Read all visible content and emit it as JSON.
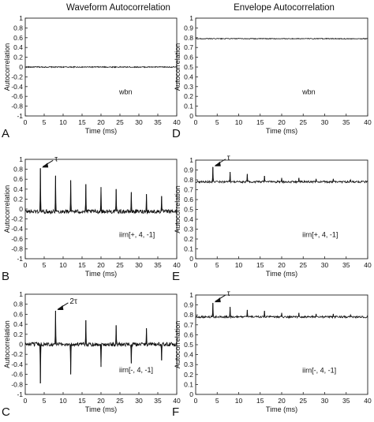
{
  "column_titles": [
    "Waveform Autocorrelation",
    "Envelope Autocorrelation"
  ],
  "chart_data": [
    {
      "type": "line",
      "panel": "A",
      "column": "Waveform Autocorrelation",
      "xlabel": "Time (ms)",
      "ylabel": "Autocorrelation",
      "xlim": [
        0,
        40
      ],
      "ylim": [
        -1,
        1
      ],
      "xticks": [
        0,
        5,
        10,
        15,
        20,
        25,
        30,
        35,
        40
      ],
      "yticks": [
        -1,
        -0.8,
        -0.6,
        -0.4,
        -0.2,
        0,
        0.2,
        0.4,
        0.6,
        0.8,
        1
      ],
      "grid": false,
      "annotation": "wbn",
      "baseline": 0,
      "noise_amplitude": 0.01,
      "peaks": [],
      "dips": [],
      "arrow": null
    },
    {
      "type": "line",
      "panel": "B",
      "column": "Waveform Autocorrelation",
      "xlabel": "Time (ms)",
      "ylabel": "Autocorrelation",
      "xlim": [
        0,
        40
      ],
      "ylim": [
        -1,
        1
      ],
      "xticks": [
        0,
        5,
        10,
        15,
        20,
        25,
        30,
        35,
        40
      ],
      "yticks": [
        -1,
        -0.8,
        -0.6,
        -0.4,
        -0.2,
        0,
        0.2,
        0.4,
        0.6,
        0.8,
        1
      ],
      "grid": false,
      "annotation": "iirn[+, 4, -1]",
      "baseline": -0.05,
      "noise_amplitude": 0.04,
      "peaks": [
        {
          "x": 4,
          "y": 0.82
        },
        {
          "x": 8,
          "y": 0.67
        },
        {
          "x": 12,
          "y": 0.58
        },
        {
          "x": 16,
          "y": 0.5
        },
        {
          "x": 20,
          "y": 0.44
        },
        {
          "x": 24,
          "y": 0.4
        },
        {
          "x": 28,
          "y": 0.34
        },
        {
          "x": 32,
          "y": 0.3
        },
        {
          "x": 36,
          "y": 0.26
        }
      ],
      "dips": [],
      "arrow": {
        "label": "τ",
        "x": 4,
        "y": 0.82
      }
    },
    {
      "type": "line",
      "panel": "C",
      "column": "Waveform Autocorrelation",
      "xlabel": "Time (ms)",
      "ylabel": "Autocorrelation",
      "xlim": [
        0,
        40
      ],
      "ylim": [
        -1,
        1
      ],
      "xticks": [
        0,
        5,
        10,
        15,
        20,
        25,
        30,
        35,
        40
      ],
      "yticks": [
        -1,
        -0.8,
        -0.6,
        -0.4,
        -0.2,
        0,
        0.2,
        0.4,
        0.6,
        0.8,
        1
      ],
      "grid": false,
      "annotation": "iirn[-, 4, -1]",
      "baseline": 0,
      "noise_amplitude": 0.04,
      "peaks": [
        {
          "x": 8,
          "y": 0.67
        },
        {
          "x": 16,
          "y": 0.48
        },
        {
          "x": 24,
          "y": 0.38
        },
        {
          "x": 32,
          "y": 0.32
        }
      ],
      "dips": [
        {
          "x": 4,
          "y": -0.78
        },
        {
          "x": 12,
          "y": -0.6
        },
        {
          "x": 20,
          "y": -0.45
        },
        {
          "x": 28,
          "y": -0.38
        },
        {
          "x": 36,
          "y": -0.32
        }
      ],
      "arrow": {
        "label": "2τ",
        "x": 8,
        "y": 0.67
      }
    },
    {
      "type": "line",
      "panel": "D",
      "column": "Envelope Autocorrelation",
      "xlabel": "Time (ms)",
      "ylabel": "Autocorrelation",
      "xlim": [
        0,
        40
      ],
      "ylim": [
        0,
        1
      ],
      "xticks": [
        0,
        5,
        10,
        15,
        20,
        25,
        30,
        35,
        40
      ],
      "yticks": [
        0,
        0.1,
        0.2,
        0.3,
        0.4,
        0.5,
        0.6,
        0.7,
        0.8,
        0.9,
        1
      ],
      "grid": false,
      "annotation": "wbn",
      "baseline": 0.79,
      "noise_amplitude": 0.004,
      "peaks": [],
      "dips": [],
      "arrow": null
    },
    {
      "type": "line",
      "panel": "E",
      "column": "Envelope Autocorrelation",
      "xlabel": "Time (ms)",
      "ylabel": "Autocorrelation",
      "xlim": [
        0,
        40
      ],
      "ylim": [
        0,
        1
      ],
      "xticks": [
        0,
        5,
        10,
        15,
        20,
        25,
        30,
        35,
        40
      ],
      "yticks": [
        0,
        0.1,
        0.2,
        0.3,
        0.4,
        0.5,
        0.6,
        0.7,
        0.8,
        0.9,
        1
      ],
      "grid": false,
      "annotation": "iirn[+, 4, -1]",
      "baseline": 0.78,
      "noise_amplitude": 0.01,
      "peaks": [
        {
          "x": 4,
          "y": 0.93
        },
        {
          "x": 8,
          "y": 0.88
        },
        {
          "x": 12,
          "y": 0.86
        },
        {
          "x": 16,
          "y": 0.84
        },
        {
          "x": 20,
          "y": 0.82
        },
        {
          "x": 24,
          "y": 0.82
        },
        {
          "x": 28,
          "y": 0.81
        },
        {
          "x": 32,
          "y": 0.81
        },
        {
          "x": 36,
          "y": 0.8
        }
      ],
      "dips": [],
      "arrow": {
        "label": "τ",
        "x": 4,
        "y": 0.93
      }
    },
    {
      "type": "line",
      "panel": "F",
      "column": "Envelope Autocorrelation",
      "xlabel": "Time (ms)",
      "ylabel": "Autocorrelation",
      "xlim": [
        0,
        40
      ],
      "ylim": [
        0,
        1
      ],
      "xticks": [
        0,
        5,
        10,
        15,
        20,
        25,
        30,
        35,
        40
      ],
      "yticks": [
        0,
        0.1,
        0.2,
        0.3,
        0.4,
        0.5,
        0.6,
        0.7,
        0.8,
        0.9,
        1
      ],
      "grid": false,
      "annotation": "iirn[-, 4, -1]",
      "baseline": 0.78,
      "noise_amplitude": 0.01,
      "peaks": [
        {
          "x": 4,
          "y": 0.92
        },
        {
          "x": 8,
          "y": 0.88
        },
        {
          "x": 12,
          "y": 0.85
        },
        {
          "x": 16,
          "y": 0.84
        },
        {
          "x": 20,
          "y": 0.82
        },
        {
          "x": 24,
          "y": 0.82
        },
        {
          "x": 28,
          "y": 0.81
        },
        {
          "x": 32,
          "y": 0.81
        },
        {
          "x": 36,
          "y": 0.8
        }
      ],
      "dips": [],
      "arrow": {
        "label": "τ",
        "x": 4,
        "y": 0.92
      }
    }
  ]
}
